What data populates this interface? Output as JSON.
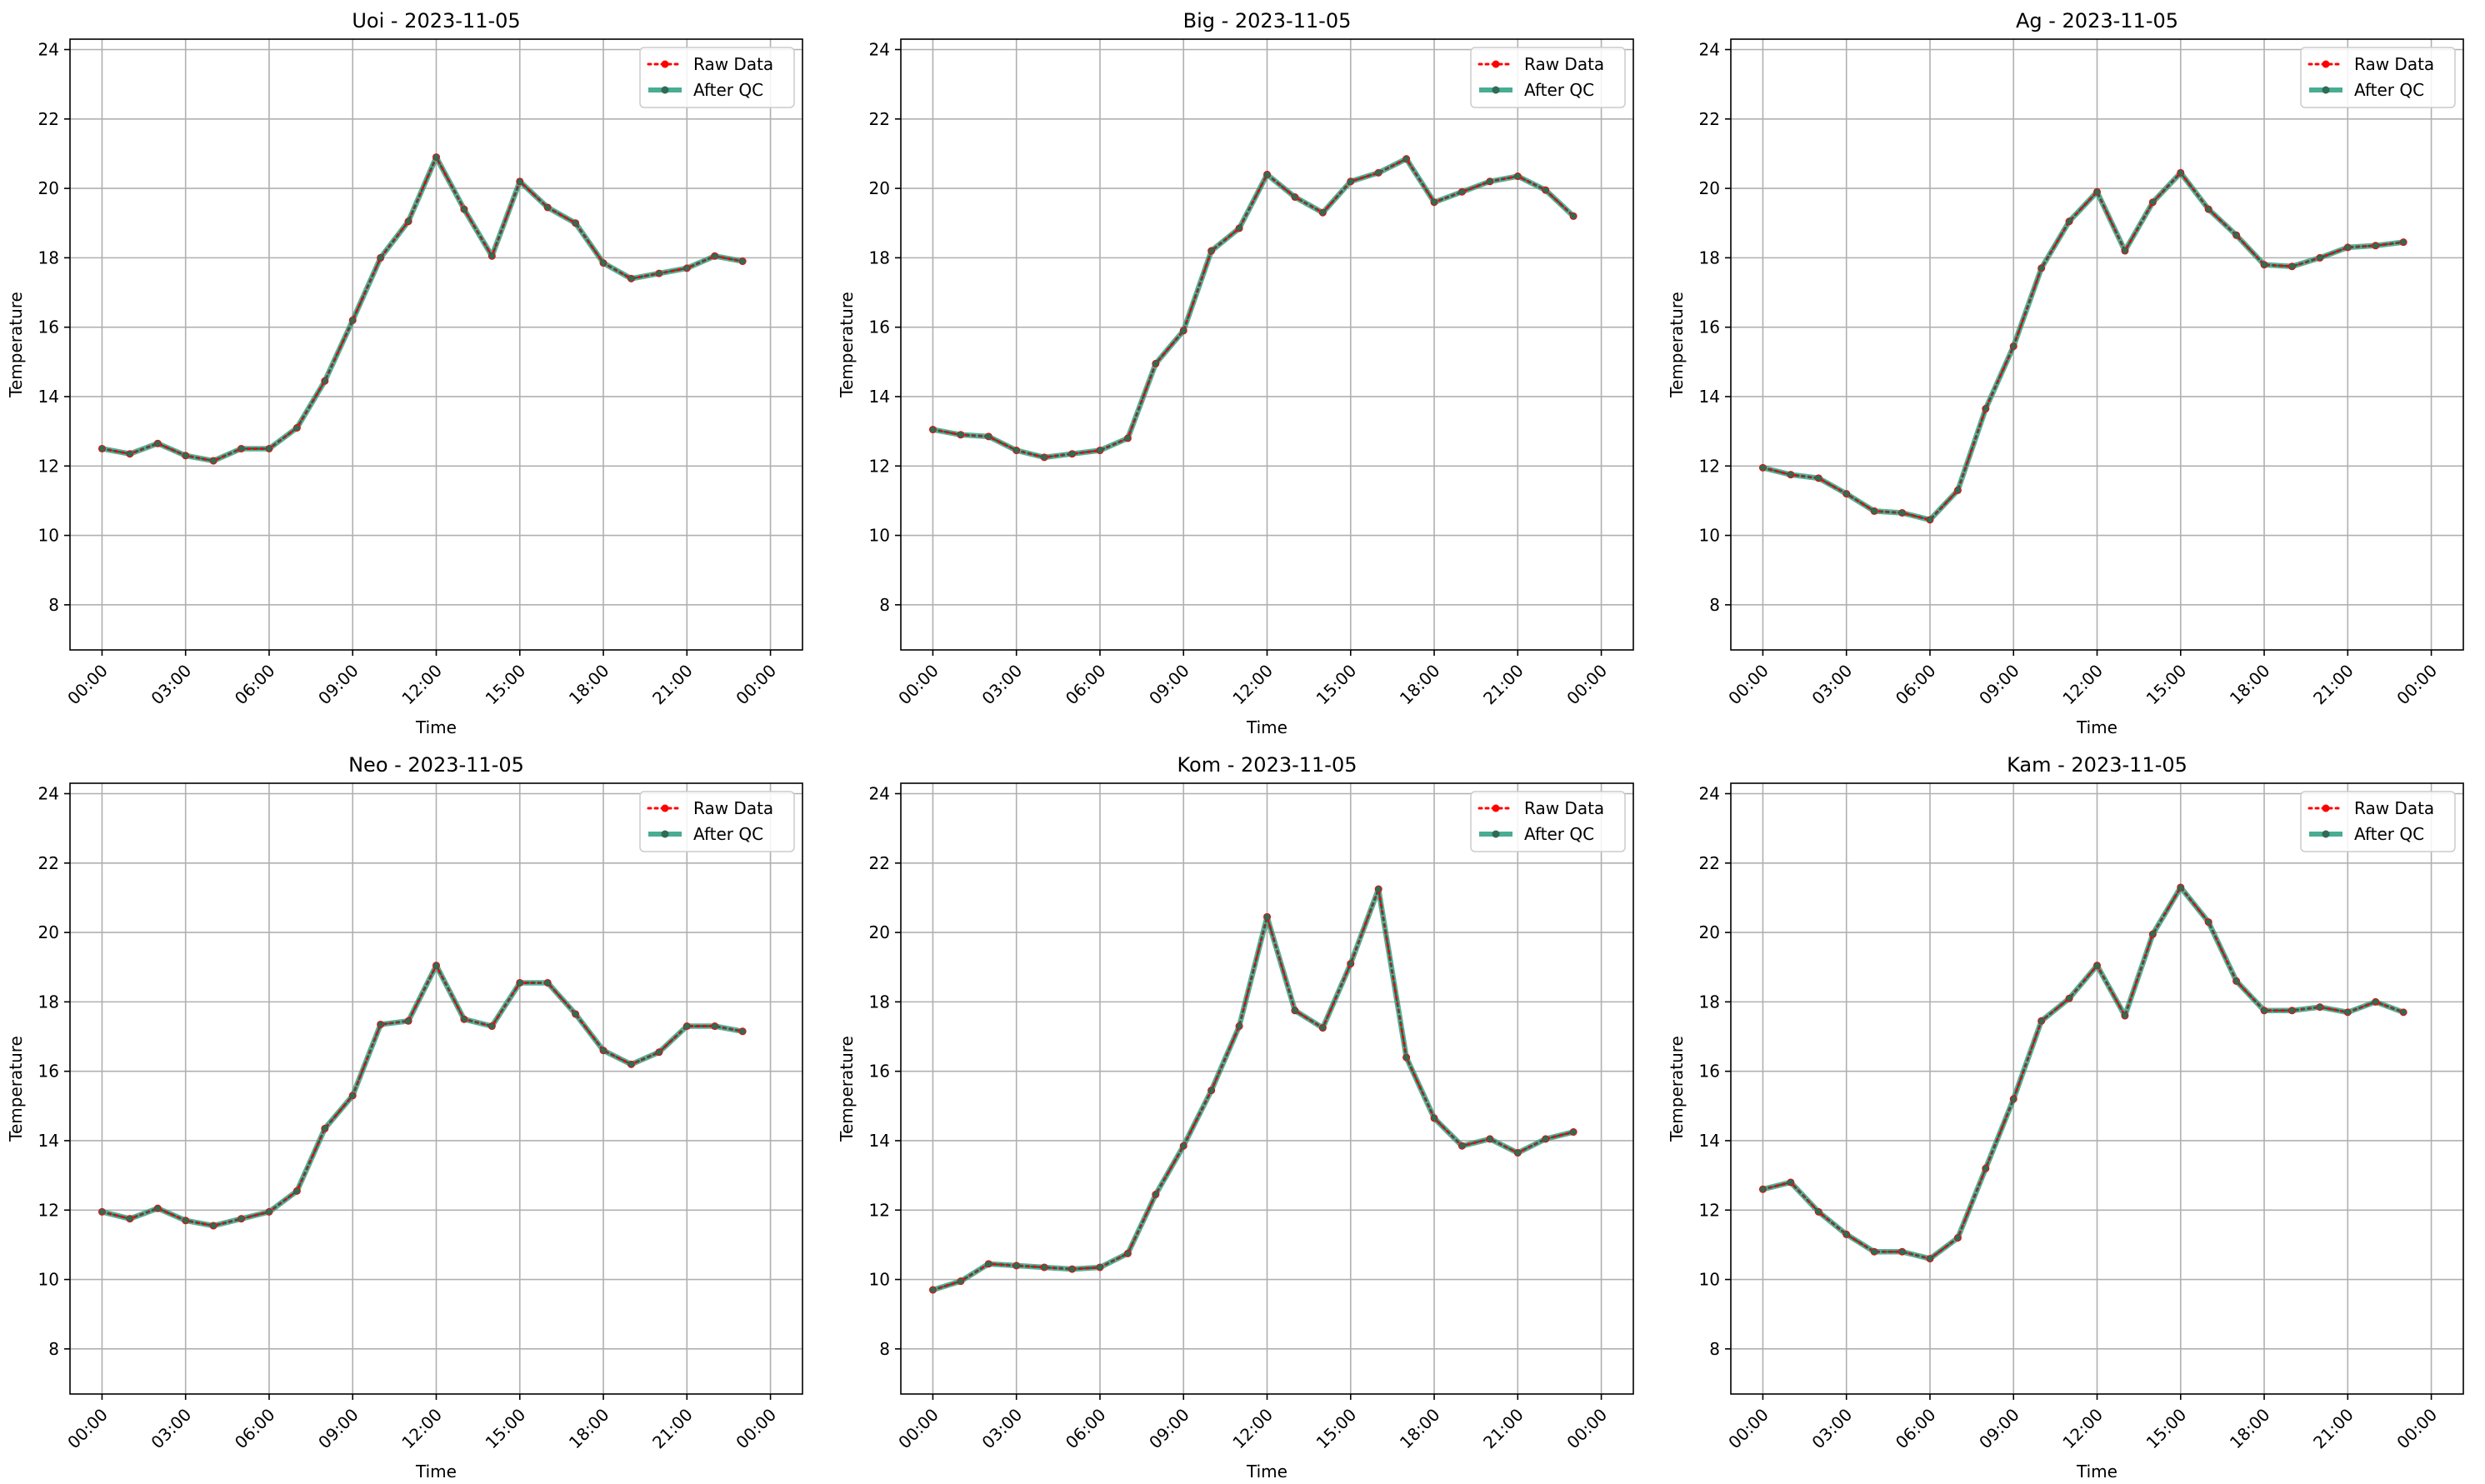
{
  "chart_data": [
    {
      "type": "line",
      "title": "Uoi - 2023-11-05",
      "xlabel": "Time",
      "ylabel": "Temperature",
      "xtick_labels": [
        "00:00",
        "03:00",
        "06:00",
        "09:00",
        "12:00",
        "15:00",
        "18:00",
        "21:00",
        "00:00"
      ],
      "yticks": [
        8,
        10,
        12,
        14,
        16,
        18,
        20,
        22,
        24
      ],
      "ylim": [
        6.7,
        24.3
      ],
      "grid": true,
      "legend": "top-right",
      "x_hours": [
        0,
        1,
        2,
        3,
        4,
        5,
        6,
        7,
        8,
        9,
        10,
        11,
        12,
        13,
        14,
        15,
        16,
        17,
        18,
        19,
        20,
        21,
        22,
        23
      ],
      "series": [
        {
          "name": "Raw Data",
          "color": "#ff0000",
          "style": "dotted",
          "values": [
            12.5,
            12.35,
            12.65,
            12.3,
            12.15,
            12.5,
            12.5,
            13.1,
            14.45,
            16.2,
            18.0,
            19.05,
            20.9,
            19.4,
            18.05,
            20.2,
            19.45,
            19.0,
            17.85,
            17.4,
            17.55,
            17.7,
            18.05,
            17.9
          ]
        },
        {
          "name": "After QC",
          "color": "#2a9d7f",
          "style": "solid",
          "values": [
            12.5,
            12.35,
            12.65,
            12.3,
            12.15,
            12.5,
            12.5,
            13.1,
            14.45,
            16.2,
            18.0,
            19.05,
            20.9,
            19.4,
            18.05,
            20.2,
            19.45,
            19.0,
            17.85,
            17.4,
            17.55,
            17.7,
            18.05,
            17.9
          ]
        }
      ]
    },
    {
      "type": "line",
      "title": "Big - 2023-11-05",
      "xlabel": "Time",
      "ylabel": "Temperature",
      "xtick_labels": [
        "00:00",
        "03:00",
        "06:00",
        "09:00",
        "12:00",
        "15:00",
        "18:00",
        "21:00",
        "00:00"
      ],
      "yticks": [
        8,
        10,
        12,
        14,
        16,
        18,
        20,
        22,
        24
      ],
      "ylim": [
        6.7,
        24.3
      ],
      "grid": true,
      "legend": "top-right",
      "x_hours": [
        0,
        1,
        2,
        3,
        4,
        5,
        6,
        7,
        8,
        9,
        10,
        11,
        12,
        13,
        14,
        15,
        16,
        17,
        18,
        19,
        20,
        21,
        22,
        23
      ],
      "series": [
        {
          "name": "Raw Data",
          "color": "#ff0000",
          "style": "dotted",
          "values": [
            13.05,
            12.9,
            12.85,
            12.45,
            12.25,
            12.35,
            12.45,
            12.8,
            14.95,
            15.9,
            18.2,
            18.85,
            20.4,
            19.75,
            19.3,
            20.2,
            20.45,
            20.85,
            19.6,
            19.9,
            20.2,
            20.35,
            19.95,
            19.2
          ]
        },
        {
          "name": "After QC",
          "color": "#2a9d7f",
          "style": "solid",
          "values": [
            13.05,
            12.9,
            12.85,
            12.45,
            12.25,
            12.35,
            12.45,
            12.8,
            14.95,
            15.9,
            18.2,
            18.85,
            20.4,
            19.75,
            19.3,
            20.2,
            20.45,
            20.85,
            19.6,
            19.9,
            20.2,
            20.35,
            19.95,
            19.2
          ]
        }
      ]
    },
    {
      "type": "line",
      "title": "Ag - 2023-11-05",
      "xlabel": "Time",
      "ylabel": "Temperature",
      "xtick_labels": [
        "00:00",
        "03:00",
        "06:00",
        "09:00",
        "12:00",
        "15:00",
        "18:00",
        "21:00",
        "00:00"
      ],
      "yticks": [
        8,
        10,
        12,
        14,
        16,
        18,
        20,
        22,
        24
      ],
      "ylim": [
        6.7,
        24.3
      ],
      "grid": true,
      "legend": "top-right",
      "x_hours": [
        0,
        1,
        2,
        3,
        4,
        5,
        6,
        7,
        8,
        9,
        10,
        11,
        12,
        13,
        14,
        15,
        16,
        17,
        18,
        19,
        20,
        21,
        22,
        23
      ],
      "series": [
        {
          "name": "Raw Data",
          "color": "#ff0000",
          "style": "dotted",
          "values": [
            11.95,
            11.75,
            11.65,
            11.2,
            10.7,
            10.65,
            10.45,
            11.3,
            13.65,
            15.45,
            17.7,
            19.05,
            19.9,
            18.2,
            19.6,
            20.45,
            19.4,
            18.65,
            17.8,
            17.75,
            18.0,
            18.3,
            18.35,
            18.45
          ]
        },
        {
          "name": "After QC",
          "color": "#2a9d7f",
          "style": "solid",
          "values": [
            11.95,
            11.75,
            11.65,
            11.2,
            10.7,
            10.65,
            10.45,
            11.3,
            13.65,
            15.45,
            17.7,
            19.05,
            19.9,
            18.2,
            19.6,
            20.45,
            19.4,
            18.65,
            17.8,
            17.75,
            18.0,
            18.3,
            18.35,
            18.45
          ]
        }
      ]
    },
    {
      "type": "line",
      "title": "Neo - 2023-11-05",
      "xlabel": "Time",
      "ylabel": "Temperature",
      "xtick_labels": [
        "00:00",
        "03:00",
        "06:00",
        "09:00",
        "12:00",
        "15:00",
        "18:00",
        "21:00",
        "00:00"
      ],
      "yticks": [
        8,
        10,
        12,
        14,
        16,
        18,
        20,
        22,
        24
      ],
      "ylim": [
        6.7,
        24.3
      ],
      "grid": true,
      "legend": "top-right",
      "x_hours": [
        0,
        1,
        2,
        3,
        4,
        5,
        6,
        7,
        8,
        9,
        10,
        11,
        12,
        13,
        14,
        15,
        16,
        17,
        18,
        19,
        20,
        21,
        22,
        23
      ],
      "series": [
        {
          "name": "Raw Data",
          "color": "#ff0000",
          "style": "dotted",
          "values": [
            11.95,
            11.75,
            12.05,
            11.7,
            11.55,
            11.75,
            11.95,
            12.55,
            14.35,
            15.3,
            17.35,
            17.45,
            19.05,
            17.5,
            17.3,
            18.55,
            18.55,
            17.65,
            16.6,
            16.2,
            16.55,
            17.3,
            17.3,
            17.15
          ]
        },
        {
          "name": "After QC",
          "color": "#2a9d7f",
          "style": "solid",
          "values": [
            11.95,
            11.75,
            12.05,
            11.7,
            11.55,
            11.75,
            11.95,
            12.55,
            14.35,
            15.3,
            17.35,
            17.45,
            19.05,
            17.5,
            17.3,
            18.55,
            18.55,
            17.65,
            16.6,
            16.2,
            16.55,
            17.3,
            17.3,
            17.15
          ]
        }
      ]
    },
    {
      "type": "line",
      "title": "Kom - 2023-11-05",
      "xlabel": "Time",
      "ylabel": "Temperature",
      "xtick_labels": [
        "00:00",
        "03:00",
        "06:00",
        "09:00",
        "12:00",
        "15:00",
        "18:00",
        "21:00",
        "00:00"
      ],
      "yticks": [
        8,
        10,
        12,
        14,
        16,
        18,
        20,
        22,
        24
      ],
      "ylim": [
        6.7,
        24.3
      ],
      "grid": true,
      "legend": "top-right",
      "x_hours": [
        0,
        1,
        2,
        3,
        4,
        5,
        6,
        7,
        8,
        9,
        10,
        11,
        12,
        13,
        14,
        15,
        16,
        17,
        18,
        19,
        20,
        21,
        22,
        23
      ],
      "series": [
        {
          "name": "Raw Data",
          "color": "#ff0000",
          "style": "dotted",
          "values": [
            9.7,
            9.95,
            10.45,
            10.4,
            10.35,
            10.3,
            10.35,
            10.75,
            12.45,
            13.85,
            15.45,
            17.3,
            20.45,
            17.75,
            17.25,
            19.1,
            21.25,
            16.4,
            14.65,
            13.85,
            14.05,
            13.65,
            14.05,
            14.25
          ]
        },
        {
          "name": "After QC",
          "color": "#2a9d7f",
          "style": "solid",
          "values": [
            9.7,
            9.95,
            10.45,
            10.4,
            10.35,
            10.3,
            10.35,
            10.75,
            12.45,
            13.85,
            15.45,
            17.3,
            20.45,
            17.75,
            17.25,
            19.1,
            21.25,
            16.4,
            14.65,
            13.85,
            14.05,
            13.65,
            14.05,
            14.25
          ]
        }
      ]
    },
    {
      "type": "line",
      "title": "Kam - 2023-11-05",
      "xlabel": "Time",
      "ylabel": "Temperature",
      "xtick_labels": [
        "00:00",
        "03:00",
        "06:00",
        "09:00",
        "12:00",
        "15:00",
        "18:00",
        "21:00",
        "00:00"
      ],
      "yticks": [
        8,
        10,
        12,
        14,
        16,
        18,
        20,
        22,
        24
      ],
      "ylim": [
        6.7,
        24.3
      ],
      "grid": true,
      "legend": "top-right",
      "x_hours": [
        0,
        1,
        2,
        3,
        4,
        5,
        6,
        7,
        8,
        9,
        10,
        11,
        12,
        13,
        14,
        15,
        16,
        17,
        18,
        19,
        20,
        21,
        22,
        23
      ],
      "series": [
        {
          "name": "Raw Data",
          "color": "#ff0000",
          "style": "dotted",
          "values": [
            12.6,
            12.8,
            11.95,
            11.3,
            10.8,
            10.8,
            10.6,
            11.2,
            13.2,
            15.2,
            17.45,
            18.1,
            19.05,
            17.6,
            19.95,
            21.3,
            20.3,
            18.6,
            17.75,
            17.75,
            17.85,
            17.7,
            18.0,
            17.7
          ]
        },
        {
          "name": "After QC",
          "color": "#2a9d7f",
          "style": "solid",
          "values": [
            12.6,
            12.8,
            11.95,
            11.3,
            10.8,
            10.8,
            10.6,
            11.2,
            13.2,
            15.2,
            17.45,
            18.1,
            19.05,
            17.6,
            19.95,
            21.3,
            20.3,
            18.6,
            17.75,
            17.75,
            17.85,
            17.7,
            18.0,
            17.7
          ]
        }
      ]
    }
  ]
}
